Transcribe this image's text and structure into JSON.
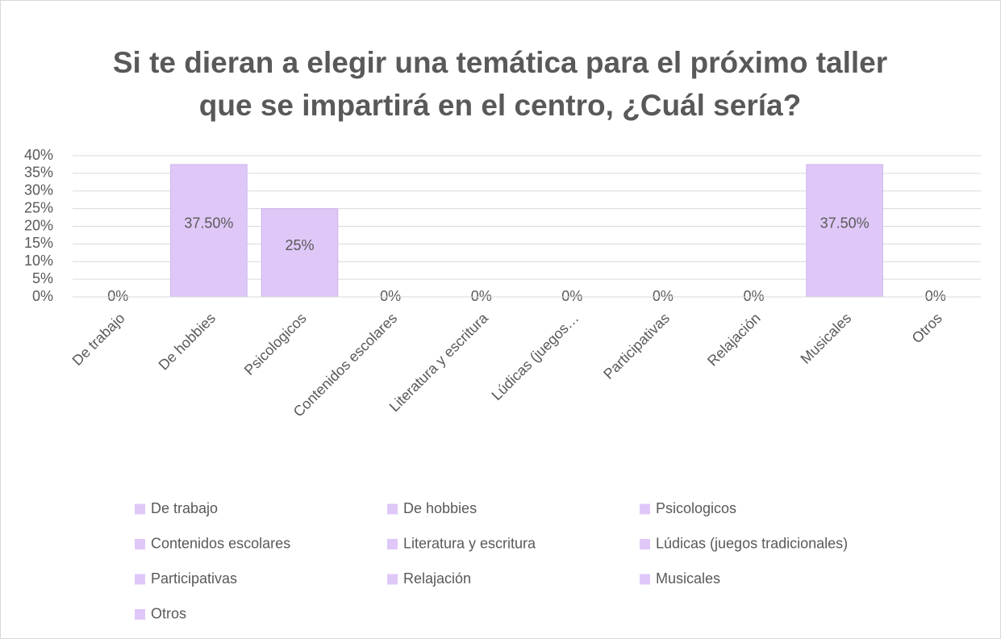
{
  "chart_data": {
    "type": "bar",
    "title": [
      "Si te dieran a elegir una temática para el próximo taller",
      "que se impartirá en el centro, ¿Cuál sería?"
    ],
    "categories": [
      "De trabajo",
      "De hobbies",
      "Psicologicos",
      "Contenidos escolares",
      "Literatura y escritura",
      "Lúdicas (juegos…",
      "Participativas",
      "Relajación",
      "Musicales",
      "Otros"
    ],
    "legend": [
      "De trabajo",
      "De hobbies",
      "Psicologicos",
      "Contenidos escolares",
      "Literatura y escritura",
      "Lúdicas (juegos tradicionales)",
      "Participativas",
      "Relajación",
      "Musicales",
      "Otros"
    ],
    "values": [
      0,
      37.5,
      25,
      0,
      0,
      0,
      0,
      0,
      37.5,
      0
    ],
    "value_labels": [
      "0%",
      "37.50%",
      "25%",
      "0%",
      "0%",
      "0%",
      "0%",
      "0%",
      "37.50%",
      "0%"
    ],
    "color": "#dfc8f8",
    "ylim": [
      0,
      40
    ],
    "yticks": [
      {
        "value": 0,
        "label": "0%"
      },
      {
        "value": 5,
        "label": "5%"
      },
      {
        "value": 10,
        "label": "10%"
      },
      {
        "value": 15,
        "label": "15%"
      },
      {
        "value": 20,
        "label": "20%"
      },
      {
        "value": 25,
        "label": "25%"
      },
      {
        "value": 30,
        "label": "30%"
      },
      {
        "value": 35,
        "label": "35%"
      },
      {
        "value": 40,
        "label": "40%"
      }
    ],
    "grid": true
  }
}
